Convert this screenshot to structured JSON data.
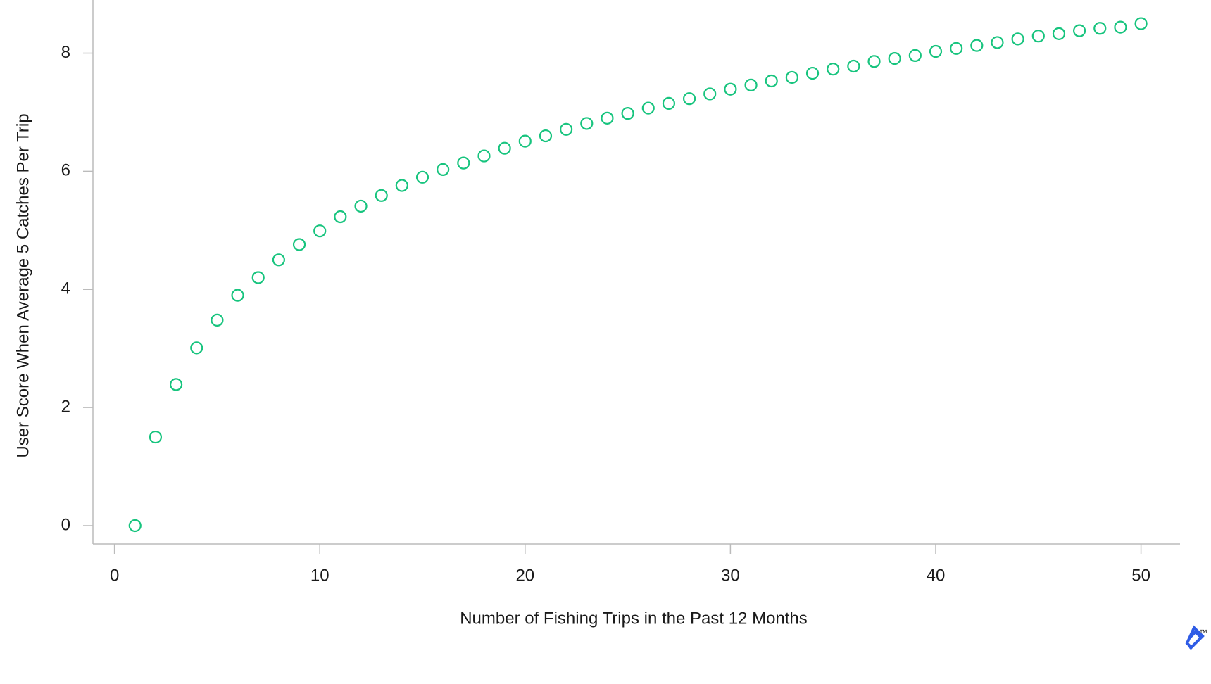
{
  "chart_data": {
    "type": "scatter",
    "xlabel": "Number of Fishing Trips in the Past 12 Months",
    "ylabel": "User Score When Average 5 Catches Per Trip",
    "x": [
      1,
      2,
      3,
      4,
      5,
      6,
      7,
      8,
      9,
      10,
      11,
      12,
      13,
      14,
      15,
      16,
      17,
      18,
      19,
      20,
      21,
      22,
      23,
      24,
      25,
      26,
      27,
      28,
      29,
      30,
      31,
      32,
      33,
      34,
      35,
      36,
      37,
      38,
      39,
      40,
      41,
      42,
      43,
      44,
      45,
      46,
      47,
      48,
      49,
      50
    ],
    "values": [
      0,
      1.5,
      2.39,
      3.01,
      3.48,
      3.9,
      4.2,
      4.5,
      4.76,
      4.99,
      5.23,
      5.41,
      5.59,
      5.76,
      5.9,
      6.03,
      6.14,
      6.26,
      6.39,
      6.51,
      6.6,
      6.71,
      6.81,
      6.9,
      6.98,
      7.07,
      7.15,
      7.23,
      7.31,
      7.39,
      7.46,
      7.53,
      7.59,
      7.66,
      7.73,
      7.78,
      7.86,
      7.91,
      7.96,
      8.03,
      8.08,
      8.13,
      8.18,
      8.24,
      8.29,
      8.33,
      8.38,
      8.42,
      8.44,
      8.5
    ],
    "color": "#17c47e",
    "xlim": [
      -1.05,
      51.9
    ],
    "xticks": [
      0,
      10,
      20,
      30,
      40,
      50
    ],
    "ylim": [
      -0.31,
      8.9
    ],
    "yticks": [
      0,
      2,
      4,
      6,
      8
    ]
  },
  "logo": {
    "mark": "™"
  }
}
